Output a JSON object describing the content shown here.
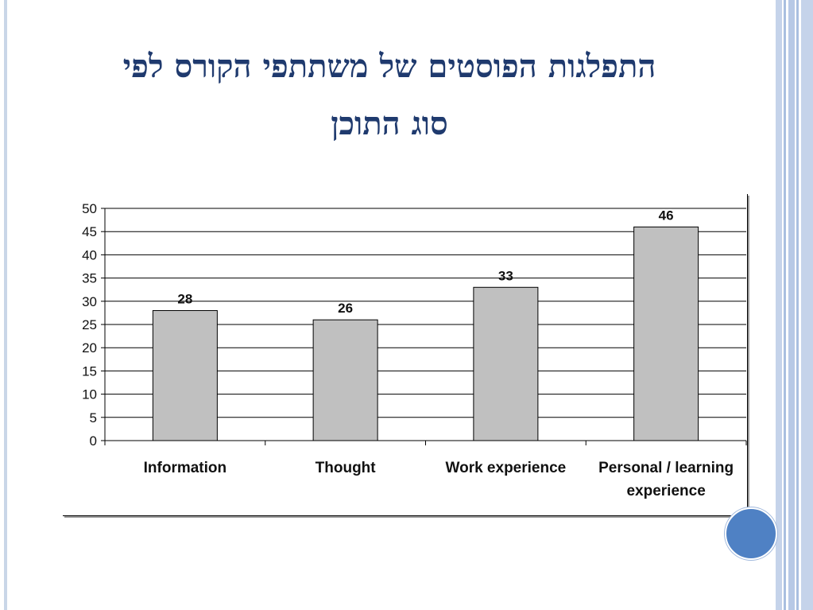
{
  "slide": {
    "title_line1": "התפלגות הפוסטים של משתתפי הקורס לפי",
    "title_line2": "סוג התוכן",
    "colors": {
      "title": "#1f3a6e",
      "bar": "#c0c0c0",
      "accent_circle": "#4f81c4",
      "stripes": "#a9bfe0"
    }
  },
  "chart_data": {
    "type": "bar",
    "title": "",
    "xlabel": "",
    "ylabel": "",
    "categories": [
      "Information",
      "Thought",
      "Work experience",
      "Personal / learning experience"
    ],
    "values": [
      28,
      26,
      33,
      46
    ],
    "data_labels": [
      "28",
      "26",
      "33",
      "46"
    ],
    "ylim": [
      0,
      50
    ],
    "yticks": [
      0,
      5,
      10,
      15,
      20,
      25,
      30,
      35,
      40,
      45,
      50
    ],
    "grid": true,
    "legend": "none",
    "bar_color": "#c0c0c0"
  }
}
